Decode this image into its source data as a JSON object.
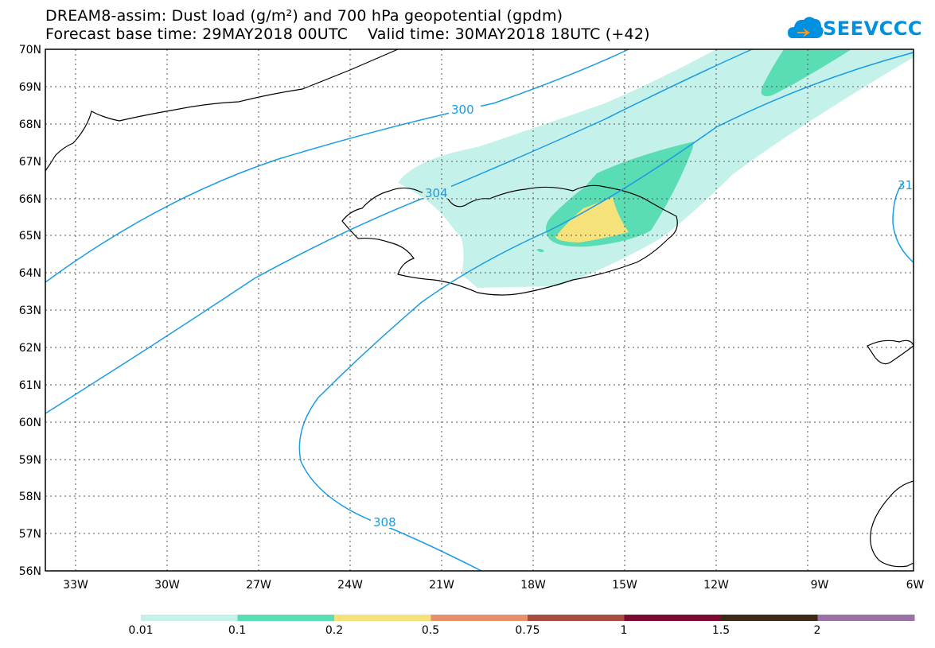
{
  "title_line1": "DREAM8-assim: Dust load (g/m²) and 700 hPa geopotential (gpdm)",
  "title_line2": "Forecast base time: 29MAY2018 00UTC    Valid time: 30MAY2018 18UTC (+42)",
  "logo_text": "SEEVCCC",
  "lat_labels": [
    "70N",
    "69N",
    "68N",
    "67N",
    "66N",
    "65N",
    "64N",
    "63N",
    "62N",
    "61N",
    "60N",
    "59N",
    "58N",
    "57N",
    "56N"
  ],
  "lon_labels": [
    "33W",
    "30W",
    "27W",
    "24W",
    "21W",
    "18W",
    "15W",
    "12W",
    "9W",
    "6W"
  ],
  "contour_labels": [
    "300",
    "304",
    "308",
    "31"
  ],
  "colorbar": {
    "colors": [
      "#c4f1e9",
      "#5adcb4",
      "#f5e27a",
      "#e8906c",
      "#a84c40",
      "#7d0a2f",
      "#3a2a16",
      "#9a72a6"
    ],
    "labels": [
      "0.01",
      "0.1",
      "0.2",
      "0.5",
      "0.75",
      "1",
      "1.5",
      "2"
    ]
  }
}
